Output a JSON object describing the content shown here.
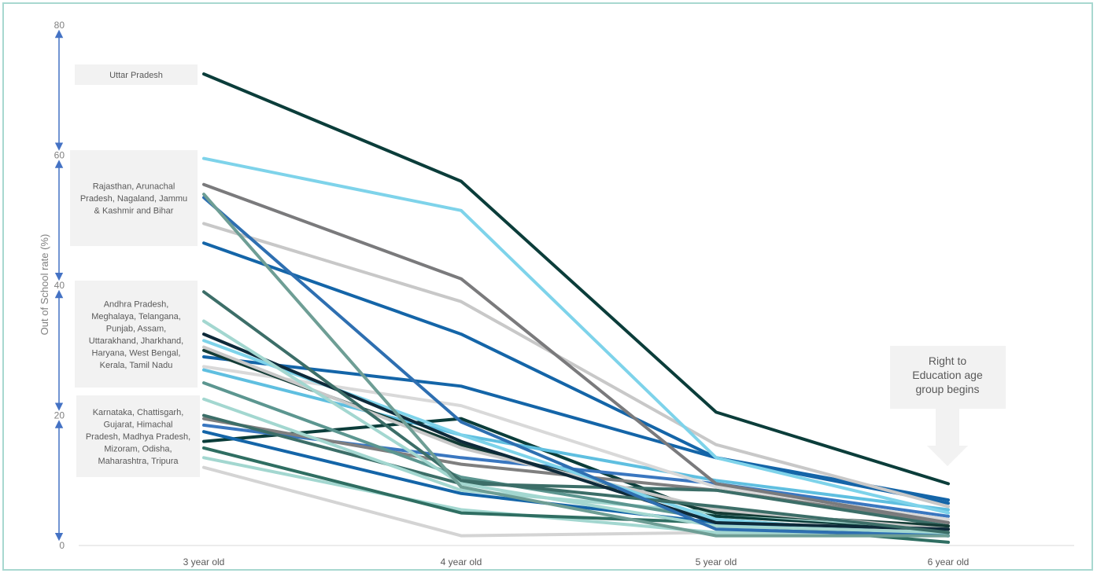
{
  "chart_data": {
    "type": "line",
    "title": "",
    "xlabel": "",
    "ylabel": "Out of School rate (%)",
    "ylim": [
      0,
      80
    ],
    "yticks": [
      "0",
      "20",
      "40",
      "60",
      "80"
    ],
    "categories": [
      "3 year old",
      "4 year old",
      "5 year old",
      "6 year old"
    ],
    "grid": false,
    "series": [
      {
        "color": "#0b3d3a",
        "values": [
          72.5,
          56.0,
          20.5,
          9.5
        ]
      },
      {
        "color": "#7ed3ea",
        "values": [
          59.5,
          51.5,
          13.5,
          5.0
        ]
      },
      {
        "color": "#7a7a7c",
        "values": [
          55.5,
          41.0,
          9.5,
          3.5
        ]
      },
      {
        "color": "#6e9e95",
        "values": [
          54.0,
          9.0,
          1.5,
          1.5
        ]
      },
      {
        "color": "#2e6fb1",
        "values": [
          53.5,
          19.0,
          2.5,
          1.5
        ]
      },
      {
        "color": "#c8c8c8",
        "values": [
          49.5,
          37.5,
          15.5,
          6.0
        ]
      },
      {
        "color": "#1465a8",
        "values": [
          46.5,
          32.5,
          13.5,
          7.0
        ]
      },
      {
        "color": "#3c6e68",
        "values": [
          39.0,
          10.0,
          6.0,
          2.0
        ]
      },
      {
        "color": "#a3d7d0",
        "values": [
          34.5,
          9.5,
          3.0,
          2.0
        ]
      },
      {
        "color": "#0e2a3a",
        "values": [
          32.5,
          16.0,
          3.5,
          2.5
        ]
      },
      {
        "color": "#7ed3ea",
        "values": [
          31.5,
          17.0,
          4.0,
          1.5
        ]
      },
      {
        "color": "#c8c8c8",
        "values": [
          30.5,
          15.0,
          5.5,
          2.5
        ]
      },
      {
        "color": "#143c36",
        "values": [
          30.0,
          15.5,
          5.0,
          3.0
        ]
      },
      {
        "color": "#1465a8",
        "values": [
          29.0,
          24.5,
          13.5,
          6.5
        ]
      },
      {
        "color": "#d9d9d9",
        "values": [
          27.5,
          21.5,
          9.0,
          4.0
        ]
      },
      {
        "color": "#5fbfe0",
        "values": [
          27.0,
          17.0,
          10.0,
          5.5
        ]
      },
      {
        "color": "#5c9690",
        "values": [
          25.0,
          10.5,
          4.0,
          1.5
        ]
      },
      {
        "color": "#a3d7d0",
        "values": [
          22.5,
          8.5,
          5.0,
          2.5
        ]
      },
      {
        "color": "#3c6e68",
        "values": [
          20.0,
          9.5,
          8.5,
          3.0
        ]
      },
      {
        "color": "#7f7f7f",
        "values": [
          19.5,
          12.5,
          8.5,
          3.5
        ]
      },
      {
        "color": "#3a77c0",
        "values": [
          18.5,
          13.5,
          9.5,
          4.5
        ]
      },
      {
        "color": "#1465a8",
        "values": [
          17.5,
          8.0,
          3.5,
          1.5
        ]
      },
      {
        "color": "#0b3d3a",
        "values": [
          16.0,
          19.5,
          4.5,
          2.5
        ]
      },
      {
        "color": "#2f6e62",
        "values": [
          15.0,
          5.0,
          3.5,
          0.5
        ]
      },
      {
        "color": "#a3d7d0",
        "values": [
          13.5,
          5.5,
          2.0,
          2.0
        ]
      },
      {
        "color": "#d4d4d4",
        "values": [
          12.0,
          1.5,
          2.0,
          2.5
        ]
      }
    ],
    "bracket_annotations": [
      {
        "text": "Uttar Pradesh",
        "range": [
          60,
          80
        ]
      },
      {
        "text": "Rajasthan, Arunachal Pradesh, Nagaland, Jammu & Kashmir and Bihar",
        "range": [
          40,
          60
        ]
      },
      {
        "text": "Andhra Pradesh, Meghalaya, Telangana, Punjab, Assam, Uttarakhand, Jharkhand, Haryana, West Bengal, Kerala, Tamil Nadu",
        "range": [
          20,
          40
        ]
      },
      {
        "text": "Karnataka, Chattisgarh, Gujarat, Himachal Pradesh, Madhya Pradesh, Mizoram, Odisha, Maharashtra, Tripura",
        "range": [
          0,
          20
        ]
      }
    ],
    "callout": {
      "text": "Right to Education age group begins",
      "category": "6 year old"
    }
  }
}
